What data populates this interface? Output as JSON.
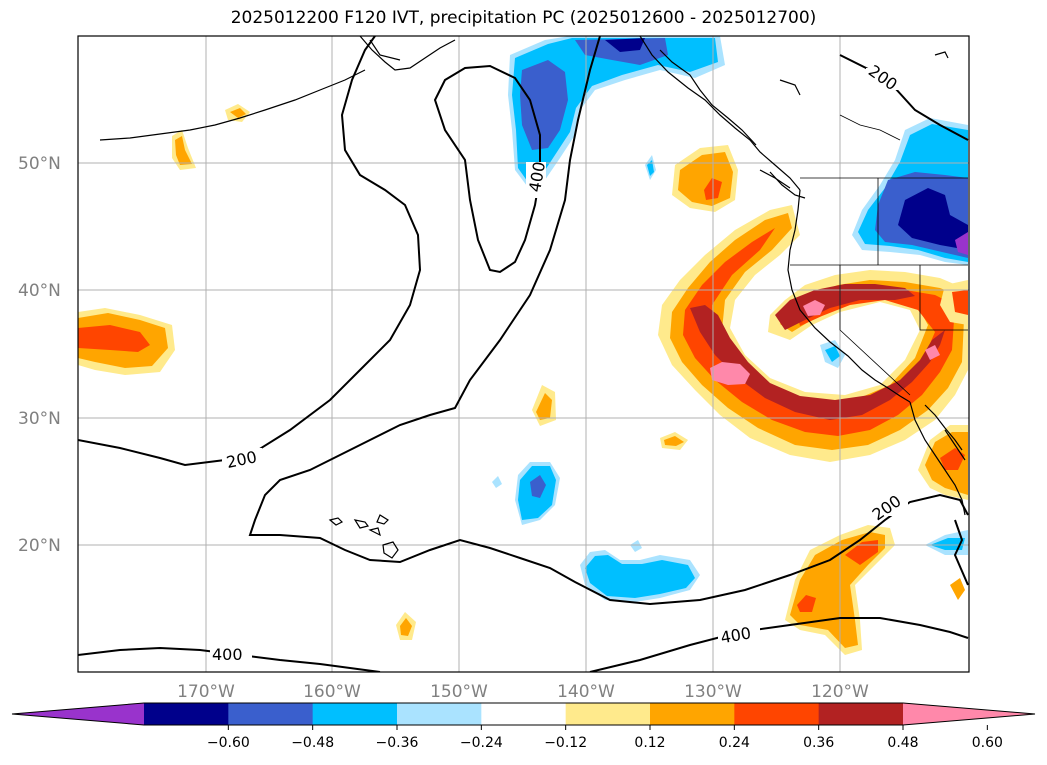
{
  "title": "2025012200 F120 IVT, precipitation PC (2025012600 - 2025012700)",
  "lat_labels": [
    "50°N",
    "40°N",
    "30°N",
    "20°N"
  ],
  "lon_labels": [
    "170°W",
    "160°W",
    "150°W",
    "140°W",
    "130°W",
    "120°W"
  ],
  "ivt_contour_labels": [
    "200",
    "200",
    "200",
    "400",
    "400",
    "400"
  ],
  "colorbar": {
    "colors": [
      "#9933cc",
      "#00008b",
      "#3a5fcd",
      "#00bfff",
      "#aae3ff",
      "#ffffff",
      "#ffea8c",
      "#ffa500",
      "#ff4500",
      "#b22222",
      "#ff88aa"
    ],
    "tick_labels": [
      "−0.60",
      "−0.48",
      "−0.36",
      "−0.24",
      "−0.12",
      "0.12",
      "0.24",
      "0.36",
      "0.48",
      "0.60"
    ]
  }
}
